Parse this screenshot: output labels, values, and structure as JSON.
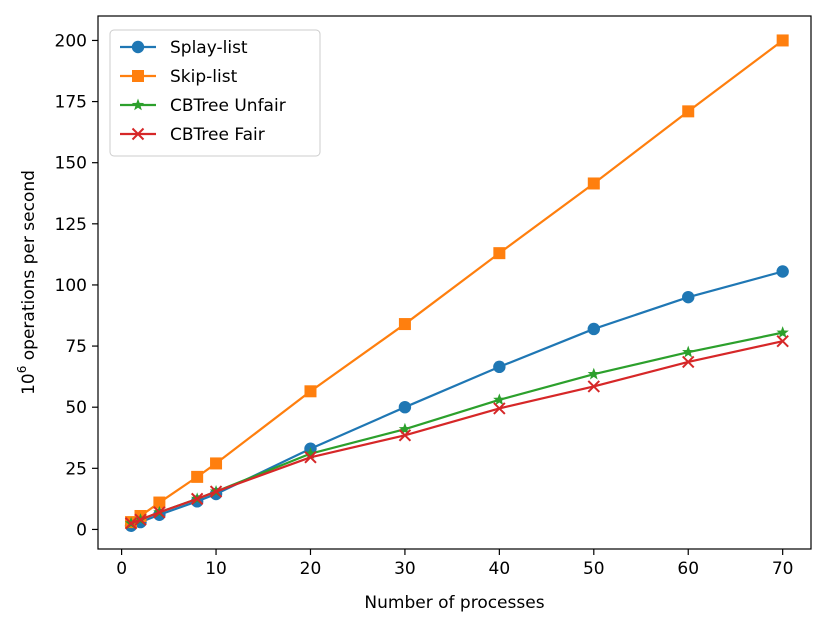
{
  "chart_data": {
    "type": "line",
    "title": "",
    "xlabel": "Number of processes",
    "ylabel_base": "10",
    "ylabel_exp": "6",
    "ylabel_rest": " operations per second",
    "xlim": [
      -2.5,
      73
    ],
    "ylim": [
      -8,
      210
    ],
    "xticks": [
      0,
      10,
      20,
      30,
      40,
      50,
      60,
      70
    ],
    "yticks": [
      0,
      25,
      50,
      75,
      100,
      125,
      150,
      175,
      200
    ],
    "grid": false,
    "legend_position": "top-left",
    "x": [
      1,
      2,
      4,
      8,
      10,
      20,
      30,
      40,
      50,
      60,
      70
    ],
    "series": [
      {
        "name": "Splay-list",
        "color": "#1f77b4",
        "marker": "circle",
        "values": [
          1.5,
          3,
          6,
          11.5,
          14.5,
          33,
          50,
          66.5,
          82,
          95,
          105.5
        ]
      },
      {
        "name": "Skip-list",
        "color": "#ff7f0e",
        "marker": "square",
        "values": [
          3,
          5.5,
          11,
          21.5,
          27,
          56.5,
          84,
          113,
          141.5,
          171,
          200
        ]
      },
      {
        "name": "CBTree Unfair",
        "color": "#2ca02c",
        "marker": "star",
        "values": [
          2.5,
          4,
          7,
          12.5,
          15.5,
          31,
          41,
          53,
          63.5,
          72.5,
          80.5
        ]
      },
      {
        "name": "CBTree Fair",
        "color": "#d62728",
        "marker": "x",
        "values": [
          2.5,
          4,
          7,
          12.5,
          15.5,
          29.5,
          38.5,
          49.5,
          58.5,
          68.5,
          77
        ]
      }
    ]
  }
}
